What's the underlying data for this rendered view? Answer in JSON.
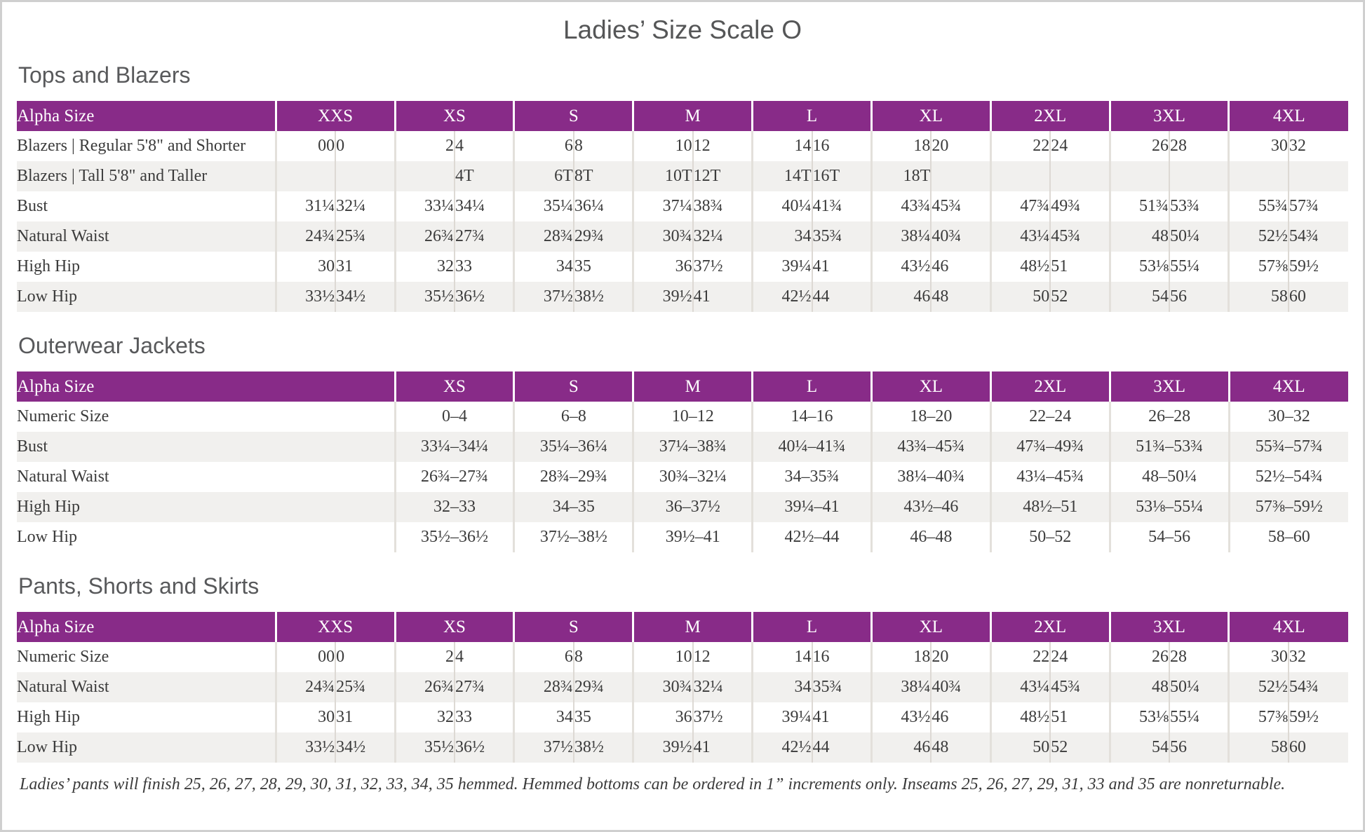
{
  "page": {
    "title": "Ladies’ Size Scale O",
    "footnote": "Ladies’ pants will finish 25, 26, 27, 28, 29, 30, 31, 32, 33, 34, 35 hemmed. Hemmed bottoms can be ordered in 1” increments only. Inseams 25, 26, 27, 29, 31, 33 and 35 are nonreturnable."
  },
  "colors": {
    "header_purple": "#882b88",
    "row_stripe": "#f1f0ee",
    "text": "#3b3b3b",
    "heading_gray": "#58595b",
    "page_border": "#cfcfcf"
  },
  "tables": [
    {
      "id": "tops-and-blazers",
      "section_title": "Tops and Blazers",
      "label_header": "Alpha Size",
      "split_columns": true,
      "columns": [
        "XXS",
        "XS",
        "S",
        "M",
        "L",
        "XL",
        "2XL",
        "3XL",
        "4XL"
      ],
      "rows": [
        {
          "label": "Blazers | Regular 5'8\" and Shorter",
          "values": [
            [
              "00",
              "0"
            ],
            [
              "2",
              "4"
            ],
            [
              "6",
              "8"
            ],
            [
              "10",
              "12"
            ],
            [
              "14",
              "16"
            ],
            [
              "18",
              "20"
            ],
            [
              "22",
              "24"
            ],
            [
              "26",
              "28"
            ],
            [
              "30",
              "32"
            ]
          ]
        },
        {
          "label": "Blazers | Tall 5'8\" and Taller",
          "values": [
            [
              "",
              ""
            ],
            [
              "",
              "4T"
            ],
            [
              "6T",
              "8T"
            ],
            [
              "10T",
              "12T"
            ],
            [
              "14T",
              "16T"
            ],
            [
              "18T",
              ""
            ],
            [
              "",
              ""
            ],
            [
              "",
              ""
            ],
            [
              "",
              ""
            ]
          ]
        },
        {
          "label": "Bust",
          "values": [
            [
              "31¼",
              "32¼"
            ],
            [
              "33¼",
              "34¼"
            ],
            [
              "35¼",
              "36¼"
            ],
            [
              "37¼",
              "38¾"
            ],
            [
              "40¼",
              "41¾"
            ],
            [
              "43¾",
              "45¾"
            ],
            [
              "47¾",
              "49¾"
            ],
            [
              "51¾",
              "53¾"
            ],
            [
              "55¾",
              "57¾"
            ]
          ]
        },
        {
          "label": "Natural Waist",
          "values": [
            [
              "24¾",
              "25¾"
            ],
            [
              "26¾",
              "27¾"
            ],
            [
              "28¾",
              "29¾"
            ],
            [
              "30¾",
              "32¼"
            ],
            [
              "34",
              "35¾"
            ],
            [
              "38¼",
              "40¾"
            ],
            [
              "43¼",
              "45¾"
            ],
            [
              "48",
              "50¼"
            ],
            [
              "52½",
              "54¾"
            ]
          ]
        },
        {
          "label": "High Hip",
          "values": [
            [
              "30",
              "31"
            ],
            [
              "32",
              "33"
            ],
            [
              "34",
              "35"
            ],
            [
              "36",
              "37½"
            ],
            [
              "39¼",
              "41"
            ],
            [
              "43½",
              "46"
            ],
            [
              "48½",
              "51"
            ],
            [
              "53⅛",
              "55¼"
            ],
            [
              "57⅜",
              "59½"
            ]
          ]
        },
        {
          "label": "Low Hip",
          "values": [
            [
              "33½",
              "34½"
            ],
            [
              "35½",
              "36½"
            ],
            [
              "37½",
              "38½"
            ],
            [
              "39½",
              "41"
            ],
            [
              "42½",
              "44"
            ],
            [
              "46",
              "48"
            ],
            [
              "50",
              "52"
            ],
            [
              "54",
              "56"
            ],
            [
              "58",
              "60"
            ]
          ]
        }
      ]
    },
    {
      "id": "outerwear-jackets",
      "section_title": "Outerwear Jackets",
      "label_header": "Alpha Size",
      "split_columns": false,
      "columns": [
        "XS",
        "S",
        "M",
        "L",
        "XL",
        "2XL",
        "3XL",
        "4XL"
      ],
      "rows": [
        {
          "label": "Numeric Size",
          "values": [
            "0–4",
            "6–8",
            "10–12",
            "14–16",
            "18–20",
            "22–24",
            "26–28",
            "30–32"
          ]
        },
        {
          "label": "Bust",
          "values": [
            "33¼–34¼",
            "35¼–36¼",
            "37¼–38¾",
            "40¼–41¾",
            "43¾–45¾",
            "47¾–49¾",
            "51¾–53¾",
            "55¾–57¾"
          ]
        },
        {
          "label": "Natural Waist",
          "values": [
            "26¾–27¾",
            "28¾–29¾",
            "30¾–32¼",
            "34–35¾",
            "38¼–40¾",
            "43¼–45¾",
            "48–50¼",
            "52½–54¾"
          ]
        },
        {
          "label": "High Hip",
          "values": [
            "32–33",
            "34–35",
            "36–37½",
            "39¼–41",
            "43½–46",
            "48½–51",
            "53⅛–55¼",
            "57⅜–59½"
          ]
        },
        {
          "label": "Low Hip",
          "values": [
            "35½–36½",
            "37½–38½",
            "39½–41",
            "42½–44",
            "46–48",
            "50–52",
            "54–56",
            "58–60"
          ]
        }
      ]
    },
    {
      "id": "pants-shorts-and-skirts",
      "section_title": "Pants, Shorts and Skirts",
      "label_header": "Alpha Size",
      "split_columns": true,
      "columns": [
        "XXS",
        "XS",
        "S",
        "M",
        "L",
        "XL",
        "2XL",
        "3XL",
        "4XL"
      ],
      "rows": [
        {
          "label": "Numeric Size",
          "values": [
            [
              "00",
              "0"
            ],
            [
              "2",
              "4"
            ],
            [
              "6",
              "8"
            ],
            [
              "10",
              "12"
            ],
            [
              "14",
              "16"
            ],
            [
              "18",
              "20"
            ],
            [
              "22",
              "24"
            ],
            [
              "26",
              "28"
            ],
            [
              "30",
              "32"
            ]
          ]
        },
        {
          "label": "Natural Waist",
          "values": [
            [
              "24¾",
              "25¾"
            ],
            [
              "26¾",
              "27¾"
            ],
            [
              "28¾",
              "29¾"
            ],
            [
              "30¾",
              "32¼"
            ],
            [
              "34",
              "35¾"
            ],
            [
              "38¼",
              "40¾"
            ],
            [
              "43¼",
              "45¾"
            ],
            [
              "48",
              "50¼"
            ],
            [
              "52½",
              "54¾"
            ]
          ]
        },
        {
          "label": "High Hip",
          "values": [
            [
              "30",
              "31"
            ],
            [
              "32",
              "33"
            ],
            [
              "34",
              "35"
            ],
            [
              "36",
              "37½"
            ],
            [
              "39¼",
              "41"
            ],
            [
              "43½",
              "46"
            ],
            [
              "48½",
              "51"
            ],
            [
              "53⅛",
              "55¼"
            ],
            [
              "57⅜",
              "59½"
            ]
          ]
        },
        {
          "label": "Low Hip",
          "values": [
            [
              "33½",
              "34½"
            ],
            [
              "35½",
              "36½"
            ],
            [
              "37½",
              "38½"
            ],
            [
              "39½",
              "41"
            ],
            [
              "42½",
              "44"
            ],
            [
              "46",
              "48"
            ],
            [
              "50",
              "52"
            ],
            [
              "54",
              "56"
            ],
            [
              "58",
              "60"
            ]
          ]
        }
      ]
    }
  ],
  "layout": {
    "label_col_pct_split": 19.45,
    "half_col_pct": 4.475,
    "label_col_pct_plain": 28.4,
    "col_pct_plain": 8.95
  }
}
